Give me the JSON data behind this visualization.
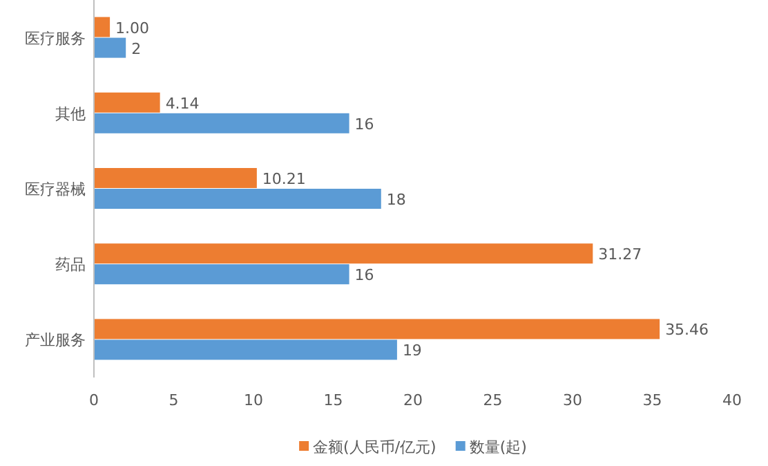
{
  "chart_data": {
    "type": "bar",
    "orientation": "horizontal",
    "categories": [
      "医疗服务",
      "其他",
      "医疗器械",
      "药品",
      "产业服务"
    ],
    "series": [
      {
        "name": "金额(人民币/亿元)",
        "color": "#ed7d31",
        "values": [
          1.0,
          4.14,
          10.21,
          31.27,
          35.46
        ],
        "value_labels": [
          "1.00",
          "4.14",
          "10.21",
          "31.27",
          "35.46"
        ]
      },
      {
        "name": "数量(起)",
        "color": "#5b9bd5",
        "values": [
          2,
          16,
          18,
          16,
          19
        ],
        "value_labels": [
          "2",
          "16",
          "18",
          "16",
          "19"
        ]
      }
    ],
    "xlim": [
      0,
      40
    ],
    "xticks": [
      0,
      5,
      10,
      15,
      20,
      25,
      30,
      35,
      40
    ],
    "legend": "bottom"
  }
}
